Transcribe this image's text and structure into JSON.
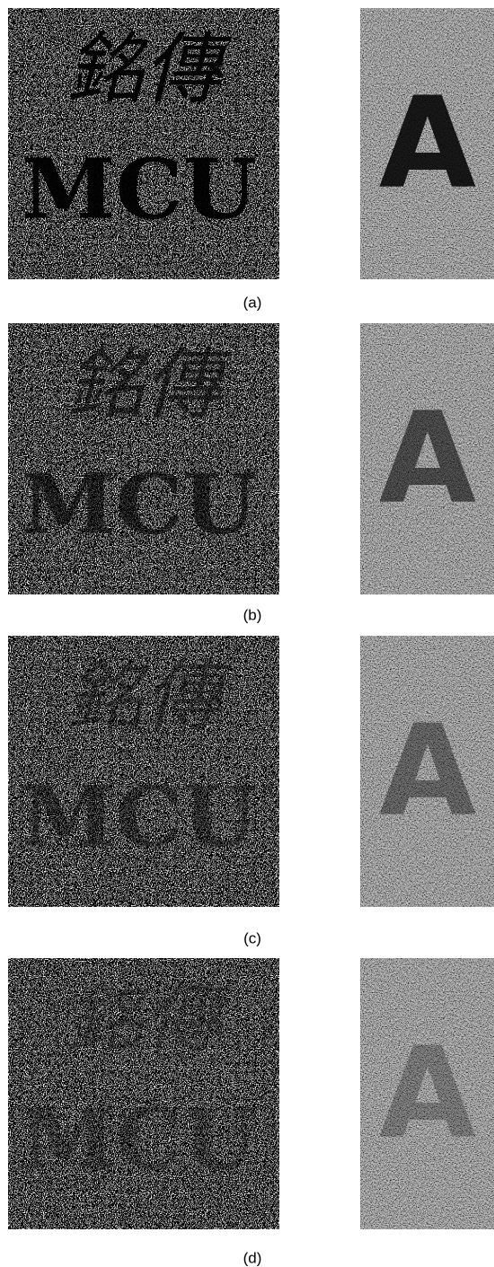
{
  "panels": [
    {
      "caption": "(a)"
    },
    {
      "caption": "(b)"
    },
    {
      "caption": "(c)"
    },
    {
      "caption": "(d)"
    }
  ],
  "left_image": {
    "line1": "銘傳",
    "line2": "MCU"
  },
  "right_image": {
    "letter": "A"
  }
}
